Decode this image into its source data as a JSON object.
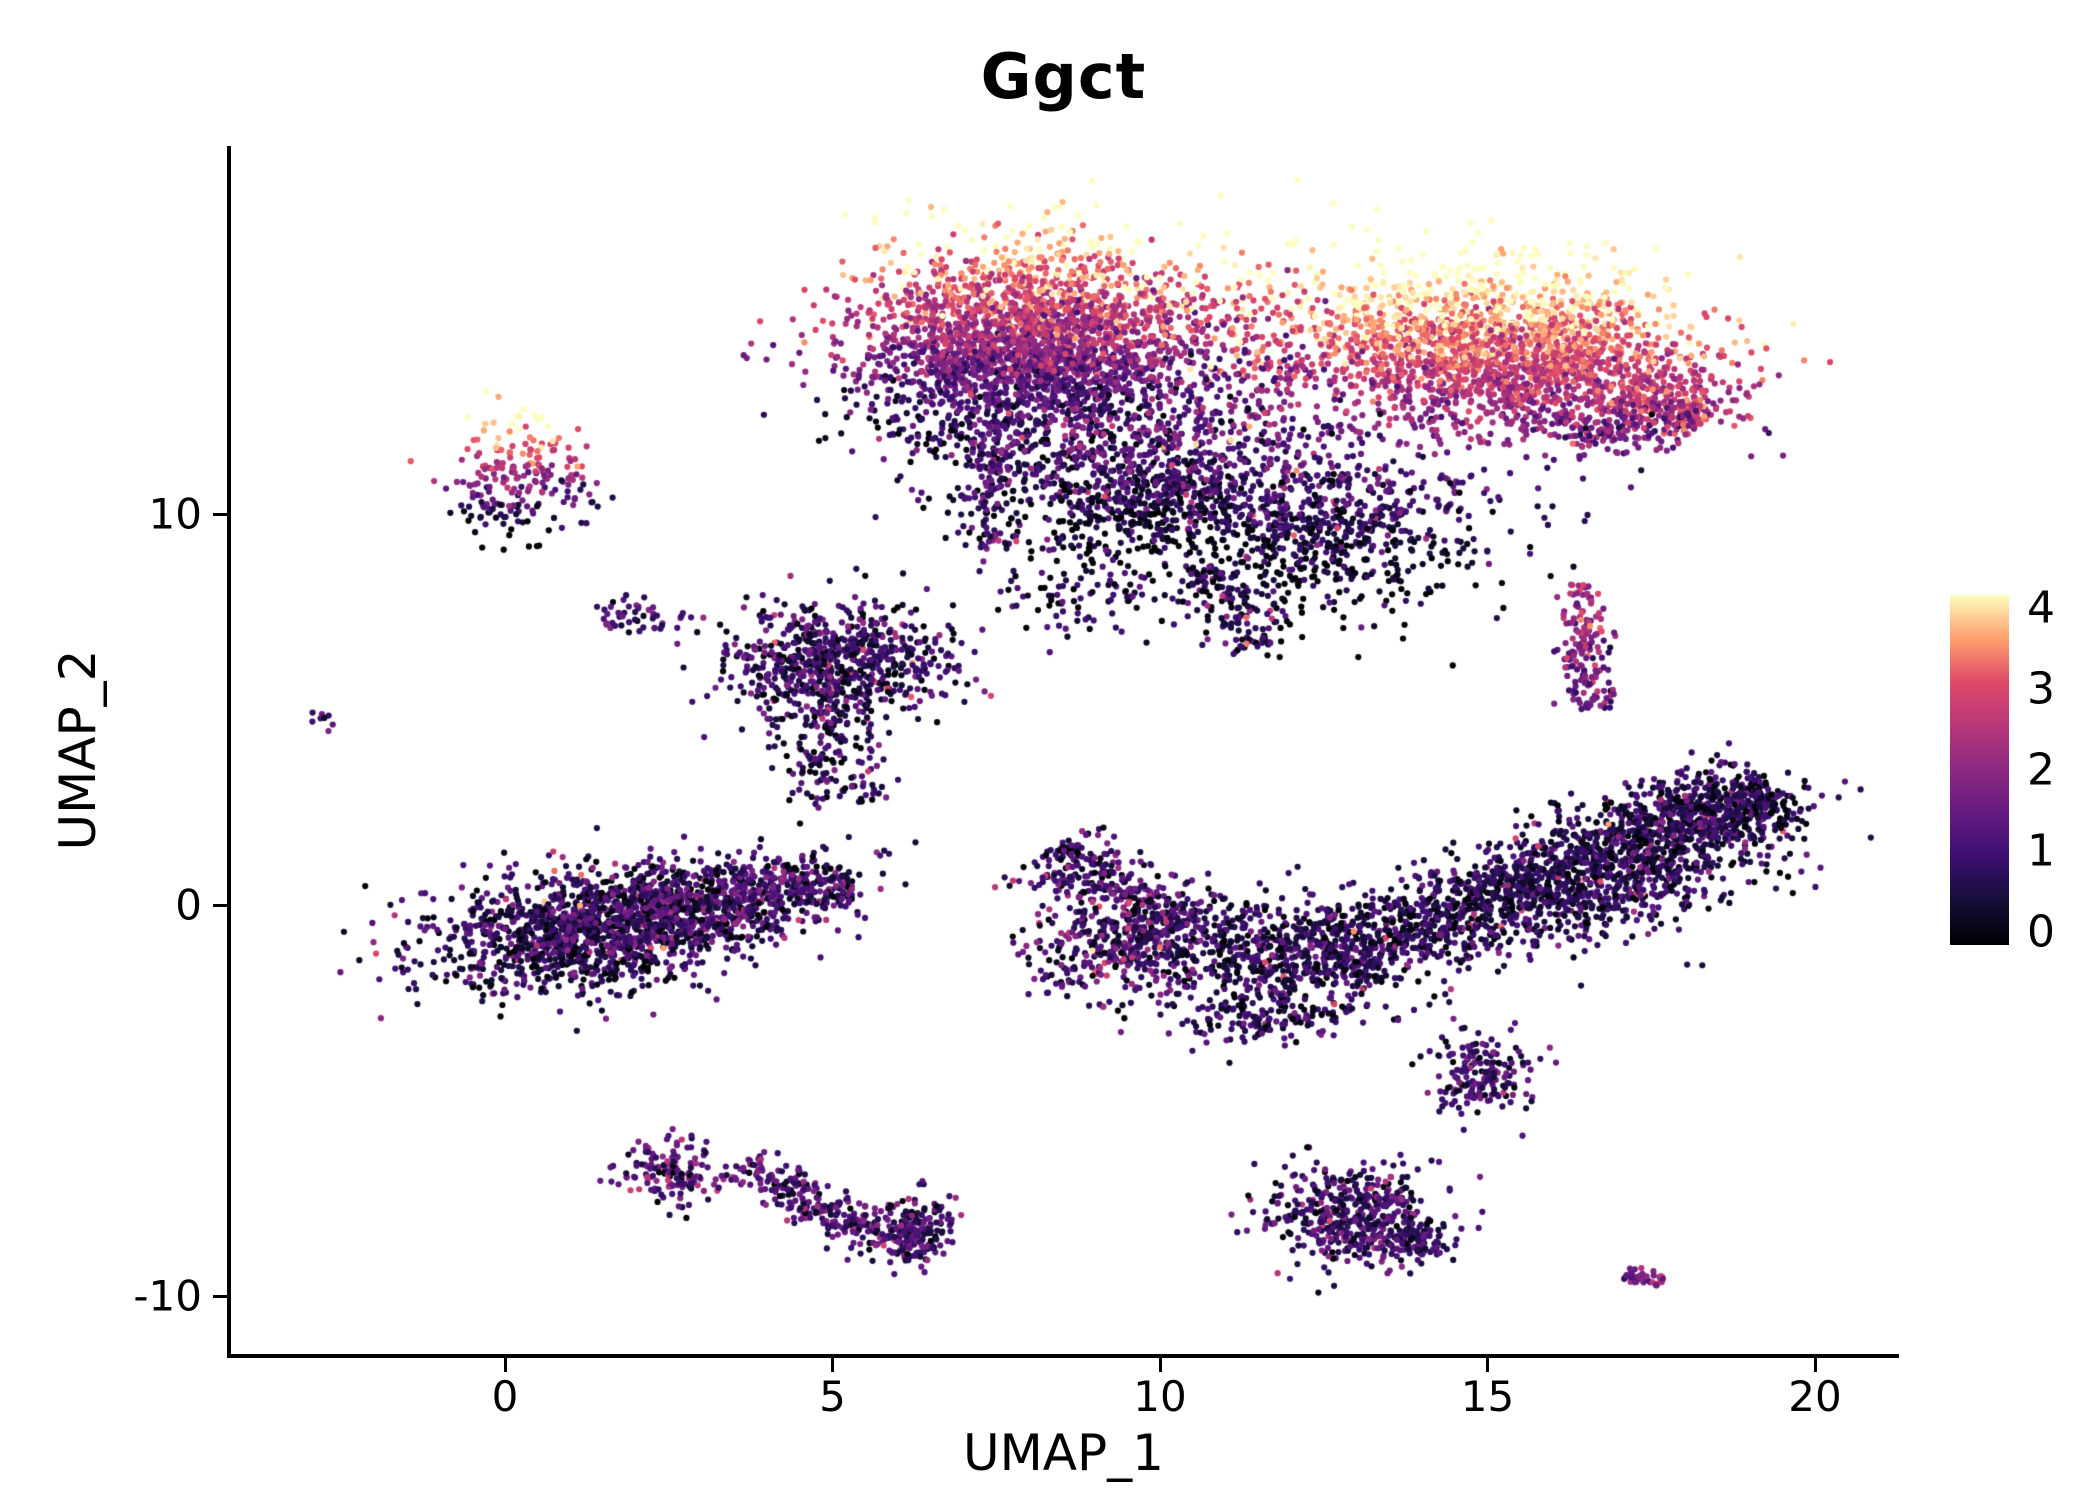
{
  "title": "Ggct",
  "colors": {
    "background": "#ffffff",
    "axis": "#000000",
    "text": "#000000"
  },
  "axes": {
    "x": {
      "label": "UMAP_1",
      "ticks": [
        0,
        5,
        10,
        15,
        20
      ],
      "range": [
        -4.15,
        21.1
      ]
    },
    "y": {
      "label": "UMAP_2",
      "ticks": [
        -10,
        0,
        10
      ],
      "range": [
        -11.5,
        19.4
      ]
    }
  },
  "colorbar": {
    "ticks": [
      4,
      3,
      2,
      1,
      0
    ],
    "min": 0,
    "max": 4,
    "palette": "magma",
    "stops": [
      {
        "t": 0,
        "color": "#000004"
      },
      {
        "t": 0.125,
        "color": "#140e36"
      },
      {
        "t": 0.25,
        "color": "#3b0f70"
      },
      {
        "t": 0.375,
        "color": "#641a80"
      },
      {
        "t": 0.5,
        "color": "#8c2981"
      },
      {
        "t": 0.625,
        "color": "#b73779"
      },
      {
        "t": 0.75,
        "color": "#de4968"
      },
      {
        "t": 0.875,
        "color": "#fe9f6d"
      },
      {
        "t": 1,
        "color": "#fcfdbf"
      }
    ]
  },
  "chart_data": {
    "type": "scatter",
    "title": "Ggct",
    "xlabel": "UMAP_1",
    "ylabel": "UMAP_2",
    "xlim": [
      -4.15,
      21.1
    ],
    "ylim": [
      -11.5,
      19.4
    ],
    "legend": "continuous colorbar right, values 0-4, magma palette (0=black, 4=pale yellow)",
    "color_scale": {
      "palette": "magma",
      "domain": [
        0,
        4
      ]
    },
    "point_radius_px": 3.1,
    "seed": 42,
    "clusters": [
      {
        "name": "top-left-islet",
        "shape": "gauss",
        "n": 220,
        "cx": 0.2,
        "cy": 10.9,
        "sx": 0.5,
        "sy": 0.8,
        "expr": {
          "base": 2.0,
          "gy": 1.3,
          "sd": 0.5
        }
      },
      {
        "name": "left-wisp",
        "shape": "gauss",
        "n": 45,
        "cx": 2.0,
        "cy": 7.3,
        "sx": 0.38,
        "sy": 0.3,
        "expr": {
          "base": 1.0,
          "sd": 0.5
        }
      },
      {
        "name": "far-left-dot",
        "shape": "gauss",
        "n": 8,
        "cx": -2.8,
        "cy": 4.7,
        "sx": 0.12,
        "sy": 0.16,
        "expr": {
          "base": 1.2,
          "sd": 0.4
        }
      },
      {
        "name": "main-top-left-lobe",
        "shape": "gauss",
        "n": 2600,
        "cx": 8.0,
        "cy": 14.3,
        "sx": 1.35,
        "sy": 1.25,
        "expr": {
          "base": 2.05,
          "gy": 0.65,
          "sd": 0.55
        }
      },
      {
        "name": "top-lobe-stem",
        "shape": "band",
        "n": 130,
        "x1": 7.4,
        "y1": 12.4,
        "x2": 7.5,
        "y2": 9.1,
        "w": 0.22,
        "expr": {
          "base": 1.1,
          "sd": 0.6,
          "spot_p": 0.04,
          "spot_boost": 1.6
        }
      },
      {
        "name": "main-top-right-lobe",
        "shape": "gauss",
        "n": 2200,
        "cx": 15.2,
        "cy": 14.1,
        "sx": 1.6,
        "sy": 1.05,
        "rot": -8,
        "expr": {
          "base": 3.0,
          "gy": 0.55,
          "sd": 0.45
        }
      },
      {
        "name": "right-lobe-tail",
        "shape": "band",
        "n": 170,
        "x1": 17.2,
        "y1": 13.3,
        "x2": 18.4,
        "y2": 12.5,
        "w": 0.35,
        "expr": {
          "base": 2.7,
          "sd": 0.5
        }
      },
      {
        "name": "right-lobe-hook",
        "shape": "band",
        "n": 150,
        "x1": 16.2,
        "y1": 12.0,
        "x2": 18.2,
        "y2": 12.6,
        "w": 0.25,
        "expr": {
          "base": 1.8,
          "sd": 0.6
        }
      },
      {
        "name": "top-bridge",
        "shape": "gauss",
        "n": 280,
        "cx": 11.3,
        "cy": 13.8,
        "sx": 1.05,
        "sy": 1.35,
        "expr": {
          "base": 2.2,
          "gy": 0.6,
          "sd": 0.8
        }
      },
      {
        "name": "dark-shelf-left",
        "shape": "gauss",
        "n": 900,
        "cx": 9.7,
        "cy": 10.7,
        "sx": 1.3,
        "sy": 1.0,
        "expr": {
          "base": 0.9,
          "gy": 0.5,
          "sd": 0.55,
          "spot_p": 0.02,
          "spot_boost": 1.8
        }
      },
      {
        "name": "dark-shelf-right",
        "shape": "gauss",
        "n": 700,
        "cx": 12.6,
        "cy": 9.7,
        "sx": 1.25,
        "sy": 1.1,
        "expr": {
          "base": 0.7,
          "gy": 0.35,
          "sd": 0.5,
          "spot_p": 0.02,
          "spot_boost": 1.8
        }
      },
      {
        "name": "dark-tail",
        "shape": "band",
        "n": 130,
        "x1": 10.6,
        "y1": 8.6,
        "x2": 11.6,
        "y2": 6.6,
        "w": 0.3,
        "expr": {
          "base": 0.8,
          "sd": 0.5,
          "spot_p": 0.05,
          "spot_boost": 1.5
        }
      },
      {
        "name": "dark-shelf-west",
        "shape": "gauss",
        "n": 90,
        "cx": 8.8,
        "cy": 8.0,
        "sx": 0.8,
        "sy": 0.6,
        "expr": {
          "base": 0.7,
          "sd": 0.5
        }
      },
      {
        "name": "mid-left-cluster",
        "shape": "gauss",
        "n": 750,
        "cx": 5.1,
        "cy": 6.2,
        "sx": 0.85,
        "sy": 0.75,
        "expr": {
          "base": 0.85,
          "sd": 0.6,
          "spot_p": 0.03,
          "spot_boost": 1.6
        }
      },
      {
        "name": "mid-left-tail",
        "shape": "band",
        "n": 130,
        "x1": 4.6,
        "y1": 4.9,
        "x2": 5.2,
        "y2": 2.5,
        "w": 0.4,
        "expr": {
          "base": 0.9,
          "sd": 0.6
        }
      },
      {
        "name": "west-blob-core",
        "shape": "gauss",
        "n": 1300,
        "cx": 1.2,
        "cy": -0.7,
        "sx": 1.15,
        "sy": 0.75,
        "rot": 10,
        "expr": {
          "base": 0.8,
          "sd": 0.6,
          "spot_p": 0.025,
          "spot_boost": 1.7
        }
      },
      {
        "name": "west-blob-east",
        "shape": "gauss",
        "n": 700,
        "cx": 3.3,
        "cy": 0.1,
        "sx": 1.0,
        "sy": 0.55,
        "rot": 15,
        "expr": {
          "base": 1.0,
          "sd": 0.6,
          "spot_p": 0.03,
          "spot_boost": 1.5
        }
      },
      {
        "name": "west-blob-tip",
        "shape": "band",
        "n": 80,
        "x1": 4.4,
        "y1": 0.4,
        "x2": 5.3,
        "y2": 0.5,
        "w": 0.28,
        "expr": {
          "base": 1.0,
          "sd": 0.5
        }
      },
      {
        "name": "south-arm",
        "shape": "band",
        "n": 320,
        "x1": 8.3,
        "y1": 1.4,
        "x2": 10.3,
        "y2": -0.6,
        "w": 0.45,
        "expr": {
          "base": 1.0,
          "sd": 0.6,
          "spot_p": 0.03,
          "spot_boost": 1.6
        }
      },
      {
        "name": "south-core",
        "shape": "gauss",
        "n": 650,
        "cx": 11.5,
        "cy": -1.2,
        "sx": 1.2,
        "sy": 0.75,
        "rot": -15,
        "expr": {
          "base": 0.7,
          "sd": 0.5,
          "spot_p": 0.02,
          "spot_boost": 1.7
        }
      },
      {
        "name": "south-west-patch",
        "shape": "gauss",
        "n": 280,
        "cx": 9.3,
        "cy": -1.2,
        "sx": 0.7,
        "sy": 0.7,
        "expr": {
          "base": 1.1,
          "sd": 0.7,
          "spot_p": 0.04,
          "spot_boost": 1.6
        }
      },
      {
        "name": "south-notch",
        "shape": "gauss",
        "n": 150,
        "cx": 11.6,
        "cy": -2.8,
        "sx": 0.6,
        "sy": 0.4,
        "expr": {
          "base": 0.8,
          "sd": 0.5
        }
      },
      {
        "name": "southeast-band",
        "shape": "band",
        "n": 1500,
        "x1": 12.6,
        "y1": -1.4,
        "x2": 19.3,
        "y2": 3.0,
        "w": 0.55,
        "expr": {
          "base": 0.7,
          "sd": 0.5,
          "spot_p": 0.02,
          "spot_boost": 2.0
        }
      },
      {
        "name": "southeast-band-lobe",
        "shape": "gauss",
        "n": 500,
        "cx": 16.8,
        "cy": 0.3,
        "sx": 1.3,
        "sy": 0.6,
        "rot": 25,
        "expr": {
          "base": 0.75,
          "sd": 0.5,
          "spot_p": 0.02,
          "spot_boost": 1.8
        }
      },
      {
        "name": "southeast-band-head",
        "shape": "gauss",
        "n": 300,
        "cx": 18.5,
        "cy": 2.4,
        "sx": 0.7,
        "sy": 0.5,
        "rot": 30,
        "expr": {
          "base": 0.7,
          "sd": 0.5,
          "spot_p": 0.015,
          "spot_boost": 2.0
        }
      },
      {
        "name": "small-south-islet",
        "shape": "gauss",
        "n": 170,
        "cx": 14.9,
        "cy": -4.3,
        "sx": 0.4,
        "sy": 0.5,
        "expr": {
          "base": 1.0,
          "sd": 0.5
        }
      },
      {
        "name": "east-strip",
        "shape": "band",
        "n": 170,
        "x1": 16.6,
        "y1": 5.0,
        "x2": 16.4,
        "y2": 8.2,
        "w": 0.18,
        "expr": {
          "base": 1.9,
          "gy": 0.3,
          "sd": 0.5,
          "spot_p": 0.05,
          "spot_boost": 1.2
        }
      },
      {
        "name": "southwest-islet",
        "shape": "gauss",
        "n": 140,
        "cx": 2.5,
        "cy": -6.8,
        "sx": 0.35,
        "sy": 0.42,
        "expr": {
          "base": 1.3,
          "sd": 0.7,
          "spot_p": 0.03,
          "spot_boost": 1.5
        }
      },
      {
        "name": "crescent-upper",
        "shape": "band",
        "n": 150,
        "x1": 3.6,
        "y1": -6.6,
        "x2": 4.9,
        "y2": -7.9,
        "w": 0.28,
        "expr": {
          "base": 1.3,
          "sd": 0.6
        }
      },
      {
        "name": "crescent-lower",
        "shape": "band",
        "n": 150,
        "x1": 4.9,
        "y1": -7.9,
        "x2": 6.3,
        "y2": -8.6,
        "w": 0.28,
        "expr": {
          "base": 1.2,
          "sd": 0.6
        }
      },
      {
        "name": "crescent-knot",
        "shape": "gauss",
        "n": 160,
        "cx": 6.25,
        "cy": -8.3,
        "sx": 0.3,
        "sy": 0.45,
        "expr": {
          "base": 1.0,
          "sd": 0.6
        }
      },
      {
        "name": "south-center-islet",
        "shape": "gauss",
        "n": 450,
        "cx": 12.9,
        "cy": -7.9,
        "sx": 0.68,
        "sy": 0.65,
        "rot": -20,
        "expr": {
          "base": 1.0,
          "sd": 0.6,
          "spot_p": 0.02,
          "spot_boost": 1.5
        }
      },
      {
        "name": "south-center-lobe",
        "shape": "gauss",
        "n": 100,
        "cx": 13.8,
        "cy": -8.6,
        "sx": 0.35,
        "sy": 0.3,
        "expr": {
          "base": 0.9,
          "sd": 0.5
        }
      },
      {
        "name": "tiny-southeast-islet",
        "shape": "band",
        "n": 40,
        "x1": 17.1,
        "y1": -9.4,
        "x2": 17.7,
        "y2": -9.6,
        "w": 0.12,
        "expr": {
          "base": 1.8,
          "sd": 0.4
        }
      }
    ]
  }
}
